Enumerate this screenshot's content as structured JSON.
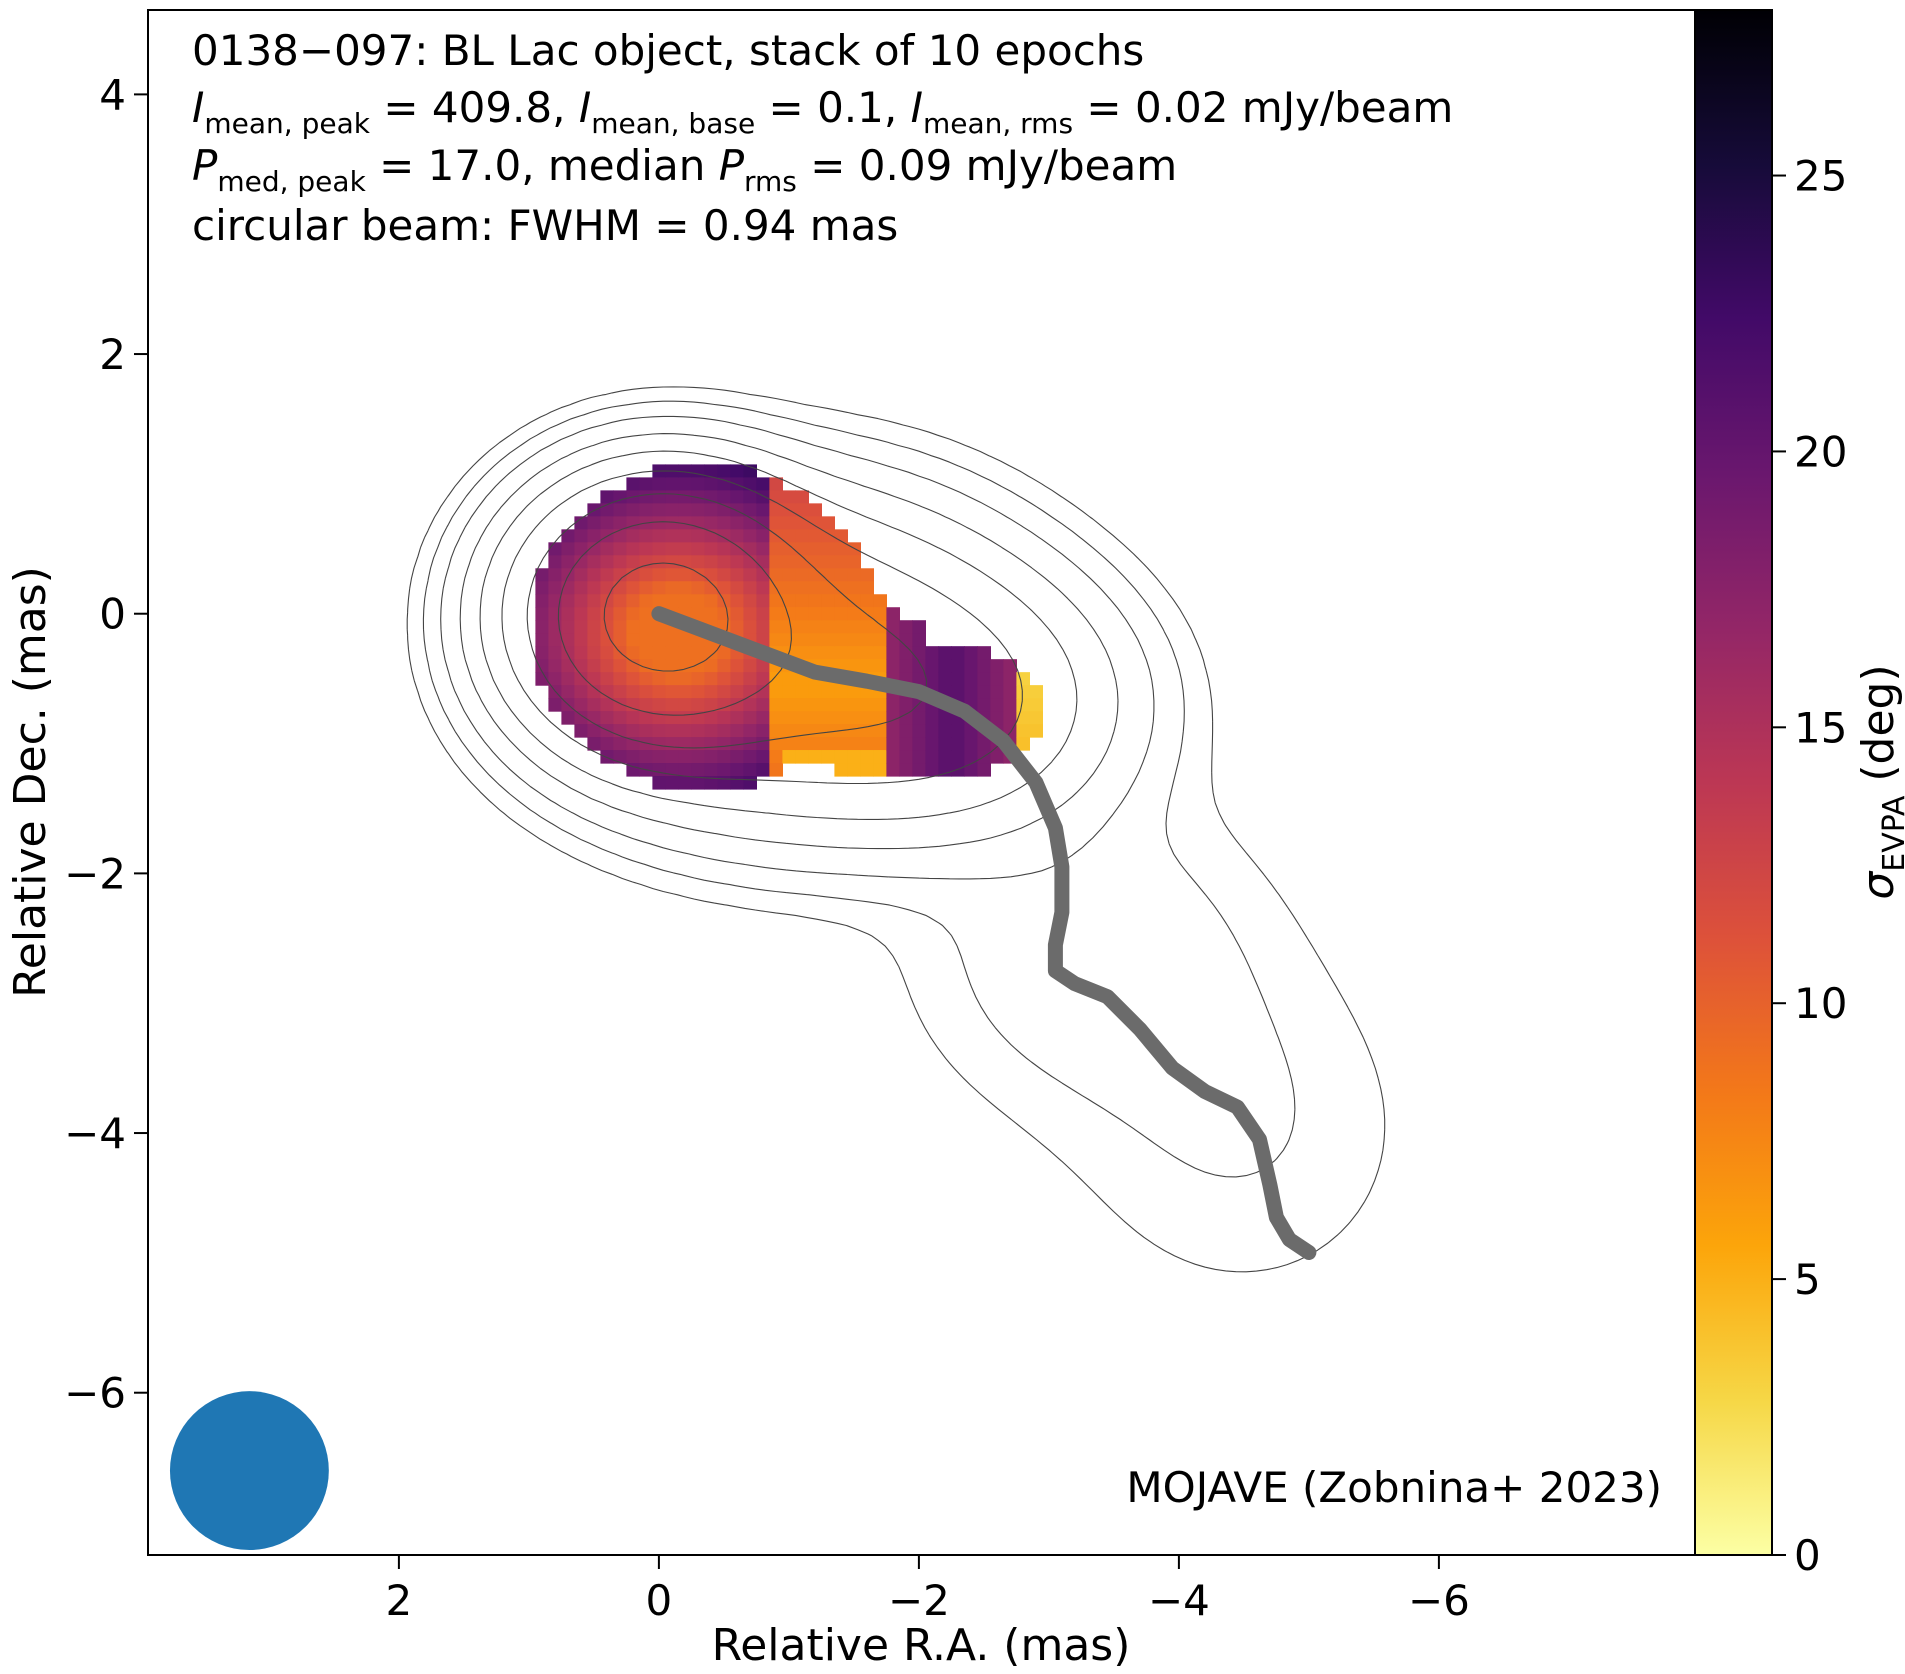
{
  "chart_data": {
    "type": "heatmap",
    "title_lines": [
      "0138−097: BL Lac object, stack of 10 epochs",
      "I_mean,peak = 409.8, I_mean,base = 0.1, I_mean,rms = 0.02 mJy/beam",
      "P_med,peak = 17.0, median P_rms = 0.09 mJy/beam",
      "circular beam: FWHM = 0.94 mas"
    ],
    "title_parts": {
      "line1": "0138−097: BL Lac object, stack of 10 epochs",
      "i_sym": "I",
      "sub_mean_peak": "mean, peak",
      "sub_mean_base": "mean, base",
      "sub_mean_rms": "mean, rms",
      "val_peak": " = 409.8, ",
      "val_base": " = 0.1, ",
      "val_rms": " = 0.02 mJy/beam",
      "p_sym": "P",
      "sub_med_peak": "med, peak",
      "val_ppeak": " = 17.0, median ",
      "sub_rms": "rms",
      "val_prms": " = 0.09 mJy/beam",
      "line4": "circular beam: FWHM = 0.94 mas"
    },
    "credit": "MOJAVE (Zobnina+ 2023)",
    "xlabel": "Relative R.A. (mas)",
    "ylabel": "Relative Dec. (mas)",
    "colorbar_label_sym": "σ",
    "colorbar_label_sub": "EVPA",
    "colorbar_label_unit": " (deg)",
    "xlim": [
      3.93,
      -7.97
    ],
    "ylim": [
      -7.25,
      4.65
    ],
    "x_ticks": [
      2,
      0,
      -2,
      -4,
      -6
    ],
    "x_tick_labels": [
      "2",
      "0",
      "−2",
      "−4",
      "−6"
    ],
    "y_ticks": [
      4,
      2,
      0,
      -2,
      -4,
      -6
    ],
    "y_tick_labels": [
      "4",
      "2",
      "0",
      "−2",
      "−4",
      "−6"
    ],
    "colorbar_range": [
      0,
      28
    ],
    "colorbar_ticks": [
      0,
      5,
      10,
      15,
      20,
      25
    ],
    "colormap": "inferno_r",
    "grid": false,
    "beam": {
      "ra": 3.15,
      "dec": -6.6,
      "fwhm_mas": 0.94,
      "color": "#1f77b4"
    },
    "ridge_line": {
      "color": "#6b6b6b",
      "points": [
        [
          0,
          0
        ],
        [
          -0.4,
          -0.15
        ],
        [
          -0.8,
          -0.3
        ],
        [
          -1.2,
          -0.45
        ],
        [
          -1.6,
          -0.52
        ],
        [
          -2.0,
          -0.6
        ],
        [
          -2.35,
          -0.75
        ],
        [
          -2.65,
          -0.98
        ],
        [
          -2.9,
          -1.3
        ],
        [
          -3.05,
          -1.65
        ],
        [
          -3.1,
          -1.95
        ],
        [
          -3.1,
          -2.3
        ],
        [
          -3.05,
          -2.55
        ],
        [
          -3.05,
          -2.75
        ],
        [
          -3.2,
          -2.85
        ],
        [
          -3.45,
          -2.95
        ],
        [
          -3.7,
          -3.2
        ],
        [
          -3.95,
          -3.5
        ],
        [
          -4.2,
          -3.68
        ],
        [
          -4.45,
          -3.8
        ],
        [
          -4.62,
          -4.05
        ],
        [
          -4.7,
          -4.4
        ],
        [
          -4.75,
          -4.65
        ],
        [
          -4.85,
          -4.82
        ],
        [
          -5.0,
          -4.92
        ]
      ]
    }
  }
}
